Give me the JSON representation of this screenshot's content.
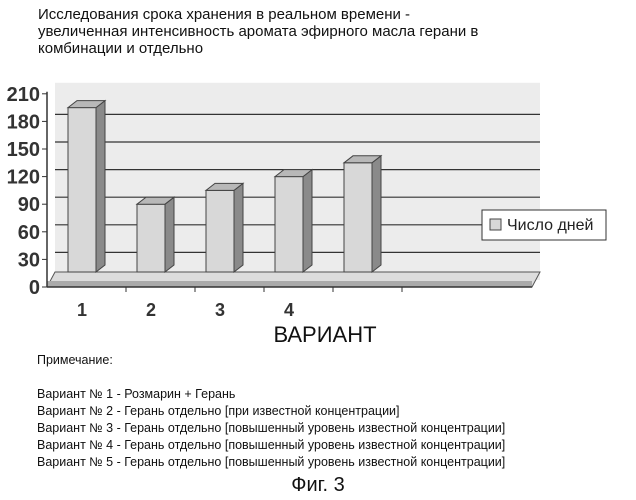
{
  "chart_data": {
    "type": "bar",
    "title_lines": [
      "Исследования срока хранения в реальном времени -",
      "увеличенная интенсивность аромата эфирного масла герани в",
      "комбинации и отдельно"
    ],
    "categories": [
      "1",
      "2",
      "3",
      "4",
      ""
    ],
    "series": [
      {
        "name": "Число дней",
        "values": [
          195,
          90,
          105,
          120,
          135
        ]
      }
    ],
    "yticks": [
      "0",
      "30",
      "60",
      "90",
      "120",
      "150",
      "180",
      "210"
    ],
    "ylim": [
      0,
      210
    ],
    "xlabel": "ВАРИАНТ",
    "ylabel": "",
    "grid": true,
    "legend": "right"
  },
  "notes": {
    "heading": "Примечание:",
    "items": [
      "Вариант № 1 - Розмарин + Герань",
      "Вариант № 2 - Герань отдельно [при известной концентрации]",
      "Вариант № 3 - Герань отдельно [повышенный уровень известной концентрации]",
      "Вариант № 4 - Герань отдельно [повышенный уровень известной концентрации]",
      "Вариант № 5 - Герань отдельно [повышенный уровень известной концентрации]"
    ]
  },
  "figure_label": "Фиг. 3"
}
